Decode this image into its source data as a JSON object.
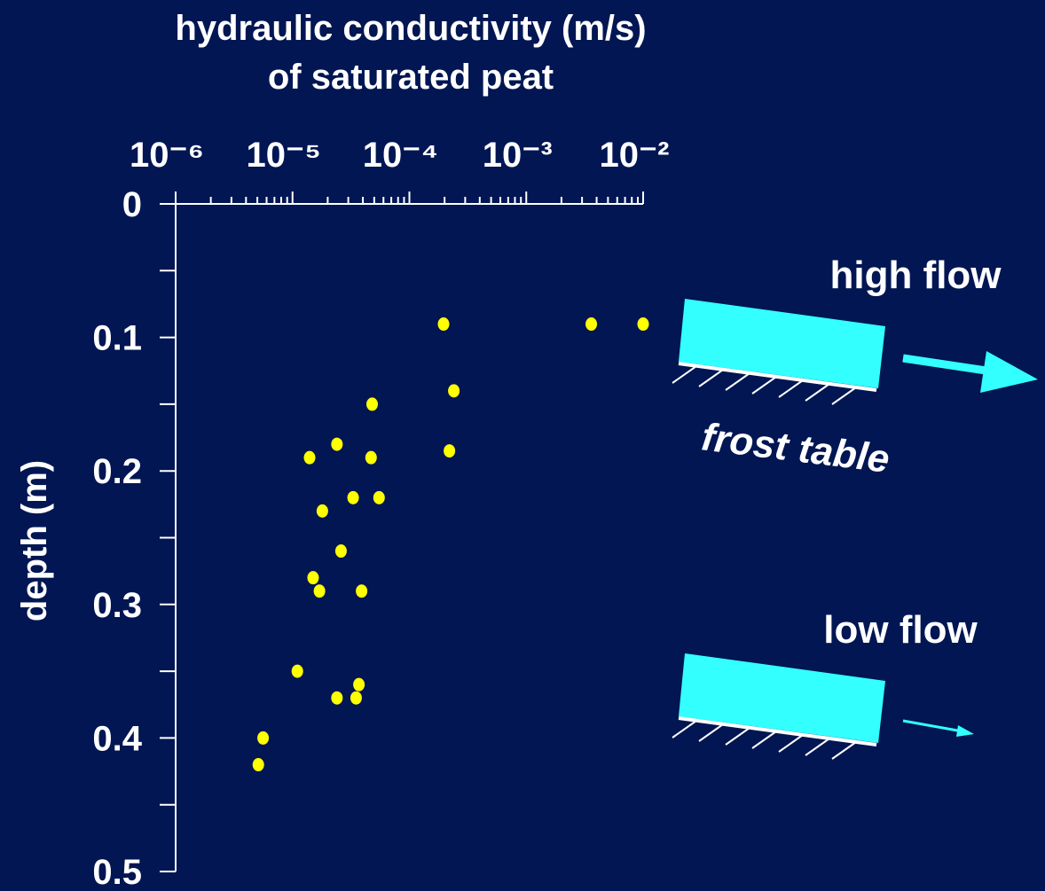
{
  "chart_data": {
    "type": "scatter",
    "title": "hydraulic conductivity (m/s)",
    "subtitle": "of saturated peat",
    "y_label": "depth (m)",
    "x_scale": "log",
    "x_axis_position": "top",
    "y_inverted": true,
    "color": "#ffff00",
    "xlim": [
      1e-06,
      0.01
    ],
    "xticks": [
      {
        "value": 1e-06,
        "label": "10⁻⁶"
      },
      {
        "value": 1e-05,
        "label": "10⁻⁵"
      },
      {
        "value": 0.0001,
        "label": "10⁻⁴"
      },
      {
        "value": 0.001,
        "label": "10⁻³"
      },
      {
        "value": 0.01,
        "label": "10⁻²"
      }
    ],
    "xminorticks": [
      2e-06,
      3e-06,
      4e-06,
      5e-06,
      6e-06,
      7e-06,
      8e-06,
      9e-06,
      2e-05,
      3e-05,
      4e-05,
      5e-05,
      6e-05,
      7e-05,
      8e-05,
      9e-05,
      0.0002,
      0.0003,
      0.0004,
      0.0005,
      0.0006,
      0.0007,
      0.0008,
      0.0009,
      0.002,
      0.003,
      0.004,
      0.005,
      0.006,
      0.007,
      0.008,
      0.009
    ],
    "ylim": [
      0,
      0.5
    ],
    "yticks": [
      0,
      0.1,
      0.2,
      0.3,
      0.4,
      0.5
    ],
    "yminorticks": [
      0.05,
      0.15,
      0.25,
      0.35,
      0.45
    ],
    "x": [
      0.000196,
      0.0036,
      0.01,
      0.00024,
      4.8e-05,
      2.4e-05,
      1.4e-05,
      4.7e-05,
      0.00022,
      3.3e-05,
      5.5e-05,
      1.8e-05,
      2.6e-05,
      1.5e-05,
      1.7e-05,
      3.9e-05,
      1.1e-05,
      3.7e-05,
      2.4e-05,
      3.5e-05,
      5.6e-06,
      5.1e-06
    ],
    "values": [
      0.09,
      0.09,
      0.09,
      0.14,
      0.15,
      0.18,
      0.19,
      0.19,
      0.185,
      0.22,
      0.22,
      0.23,
      0.26,
      0.28,
      0.29,
      0.29,
      0.35,
      0.36,
      0.37,
      0.37,
      0.4,
      0.42
    ],
    "annotations": [
      "high flow",
      "frost table",
      "low flow"
    ]
  }
}
